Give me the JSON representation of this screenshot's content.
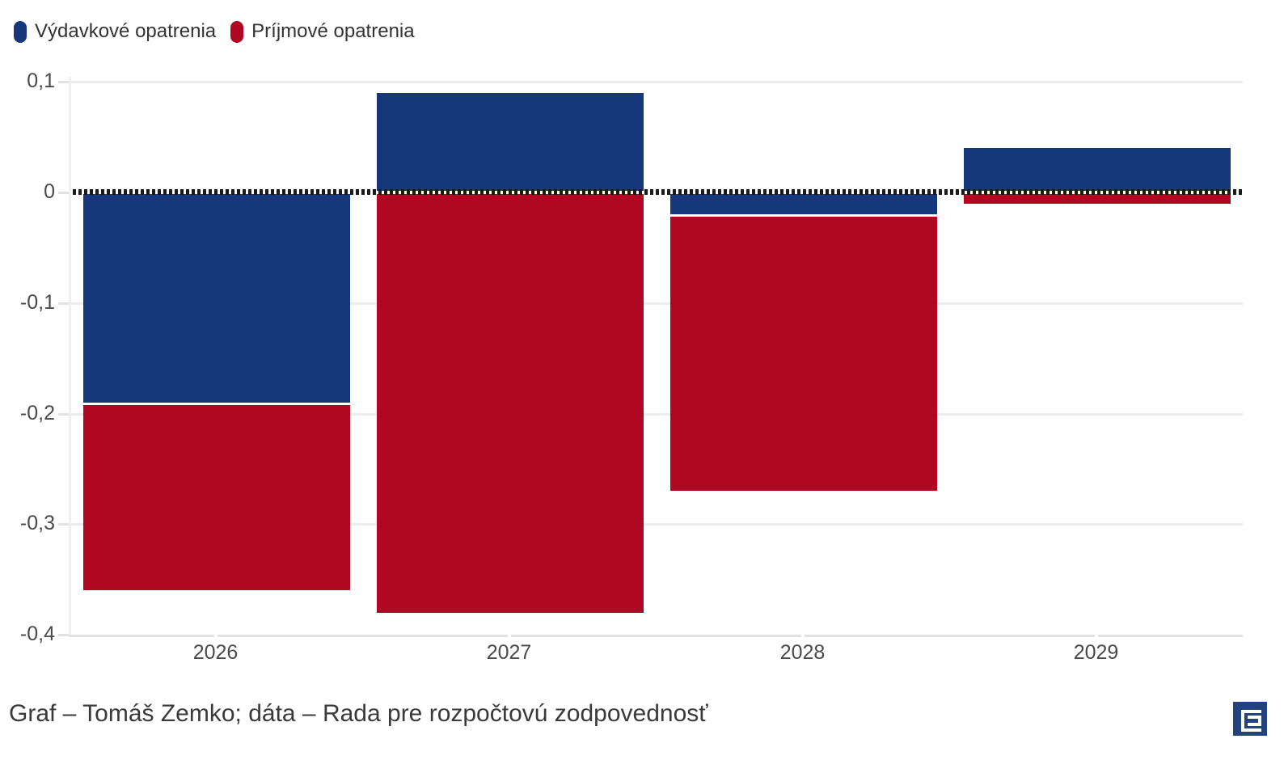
{
  "legend": {
    "items": [
      {
        "label": "Výdavkové opatrenia",
        "color": "#16387b"
      },
      {
        "label": "Príjmové opatrenia",
        "color": "#b00723"
      }
    ]
  },
  "chart_data": {
    "type": "bar",
    "stacked": true,
    "orientation": "vertical",
    "categories": [
      "2026",
      "2027",
      "2028",
      "2029"
    ],
    "series": [
      {
        "id": "expense",
        "name": "Výdavkové opatrenia",
        "color": "#16387b",
        "values": [
          -0.19,
          0.09,
          -0.02,
          0.04
        ]
      },
      {
        "id": "revenue",
        "name": "Príjmové opatrenia",
        "color": "#b00723",
        "values": [
          -0.17,
          -0.38,
          -0.25,
          -0.01
        ]
      }
    ],
    "yticks": [
      "0,1",
      "0",
      "-0,1",
      "-0,2",
      "-0,3",
      "-0,4"
    ],
    "ytick_values": [
      0.1,
      0,
      -0.1,
      -0.2,
      -0.3,
      -0.4
    ],
    "ylim": [
      -0.4,
      0.1
    ],
    "grid": "horizontal",
    "legend_position": "top",
    "zero_line": "dotted-black",
    "title": "",
    "xlabel": "",
    "ylabel": ""
  },
  "footer": {
    "credit": "Graf – Tomáš Zemko; dáta – Rada pre rozpočtovú zodpovednosť",
    "logo": "dennik-e-logo"
  },
  "colors": {
    "background": "#ffffff",
    "grid": "#ececec",
    "axis": "#e2e2e2",
    "zero_line": "#1b1b1b",
    "axis_label": "#4a4a4a",
    "legend_text": "#333333",
    "footer_text": "#3a3a3a",
    "logo_blue": "#24427c"
  }
}
